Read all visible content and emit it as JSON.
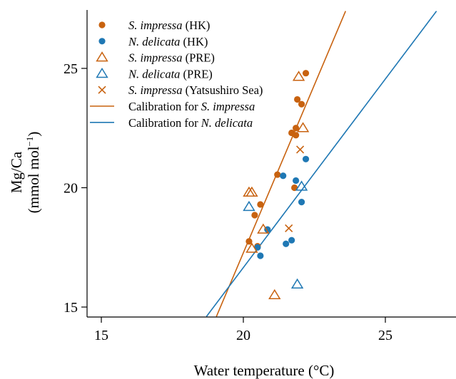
{
  "chart_data": {
    "type": "scatter",
    "xlabel": "Water temperature (°C)",
    "ylabel_line1": "Mg/Ca",
    "ylabel_line2_prefix": "(mmol mol",
    "ylabel_line2_sup": "−1",
    "ylabel_line2_suffix": ")",
    "xlim": [
      13.5,
      27.5
    ],
    "ylim": [
      14.6,
      27.4
    ],
    "xticks": [
      15,
      20,
      25
    ],
    "yticks": [
      15,
      20,
      25
    ],
    "grid": false,
    "legend_position": "top-left",
    "colors": {
      "orange": "#C8620F",
      "blue": "#1F78B4"
    },
    "series": [
      {
        "name_italic": "S. impressa",
        "name_suffix": " (HK)",
        "marker": "filled-circle",
        "color": "#C8620F",
        "points": [
          [
            22.2,
            24.8
          ],
          [
            21.9,
            23.7
          ],
          [
            22.05,
            23.5
          ],
          [
            21.85,
            22.5
          ],
          [
            21.7,
            22.3
          ],
          [
            21.85,
            22.2
          ],
          [
            21.2,
            20.55
          ],
          [
            21.8,
            20.0
          ],
          [
            20.6,
            19.3
          ],
          [
            20.4,
            18.85
          ],
          [
            20.2,
            17.75
          ],
          [
            20.5,
            17.55
          ]
        ]
      },
      {
        "name_italic": "N. delicata",
        "name_suffix": " (HK)",
        "marker": "filled-circle",
        "color": "#1F78B4",
        "points": [
          [
            21.4,
            20.5
          ],
          [
            22.2,
            21.2
          ],
          [
            21.85,
            20.3
          ],
          [
            22.05,
            19.4
          ],
          [
            20.85,
            18.25
          ],
          [
            21.7,
            17.8
          ],
          [
            21.5,
            17.65
          ],
          [
            20.5,
            17.5
          ],
          [
            20.6,
            17.15
          ]
        ]
      },
      {
        "name_italic": "S. impressa",
        "name_suffix": " (PRE)",
        "marker": "open-triangle",
        "color": "#C8620F",
        "points": [
          [
            21.95,
            24.65
          ],
          [
            22.1,
            22.5
          ],
          [
            20.2,
            19.8
          ],
          [
            20.3,
            19.8
          ],
          [
            20.7,
            18.25
          ],
          [
            20.3,
            17.45
          ],
          [
            21.1,
            15.5
          ]
        ]
      },
      {
        "name_italic": "N. delicata",
        "name_suffix": " (PRE)",
        "marker": "open-triangle",
        "color": "#1F78B4",
        "points": [
          [
            22.05,
            20.05
          ],
          [
            20.2,
            19.2
          ],
          [
            21.9,
            15.95
          ]
        ]
      },
      {
        "name_italic": "S. impressa",
        "name_suffix": " (Yatsushiro Sea)",
        "marker": "cross",
        "color": "#C8620F",
        "points": [
          [
            22.0,
            21.6
          ],
          [
            21.6,
            18.3
          ]
        ]
      }
    ],
    "calibrations": [
      {
        "name_prefix": "Calibration for ",
        "name_italic": "S. impressa",
        "color": "#C8620F",
        "from": [
          19.05,
          14.6
        ],
        "to": [
          23.6,
          27.4
        ]
      },
      {
        "name_prefix": "Calibration for ",
        "name_italic": "N. delicata",
        "color": "#1F78B4",
        "from": [
          18.7,
          14.6
        ],
        "to": [
          26.8,
          27.4
        ]
      }
    ]
  }
}
